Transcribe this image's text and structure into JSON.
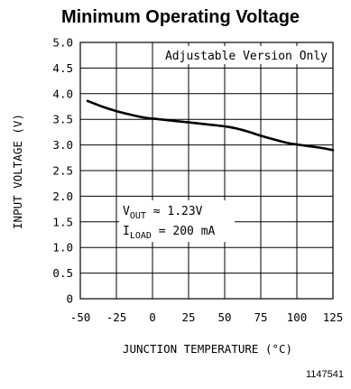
{
  "chart_data": {
    "type": "line",
    "title": "Minimum Operating Voltage",
    "xlabel": "JUNCTION TEMPERATURE (°C)",
    "ylabel": "INPUT VOLTAGE (V)",
    "xlim": [
      -50,
      125
    ],
    "ylim": [
      0,
      5.0
    ],
    "x_ticks": [
      "-50",
      "-25",
      "0",
      "25",
      "50",
      "75",
      "100",
      "125"
    ],
    "y_ticks": [
      "0",
      "0.5",
      "1.0",
      "1.5",
      "2.0",
      "2.5",
      "3.0",
      "3.5",
      "4.0",
      "4.5",
      "5.0"
    ],
    "grid": true,
    "series": [
      {
        "x": [
          -45,
          -35,
          -25,
          -15,
          -5,
          5,
          15,
          25,
          35,
          45,
          55,
          65,
          75,
          85,
          95,
          105,
          115,
          125
        ],
        "y": [
          3.86,
          3.75,
          3.66,
          3.59,
          3.53,
          3.5,
          3.47,
          3.44,
          3.41,
          3.38,
          3.34,
          3.27,
          3.18,
          3.1,
          3.03,
          2.99,
          2.95,
          2.9
        ]
      }
    ],
    "annotations": {
      "top_right": "Adjustable Version Only",
      "vout_prefix": "V",
      "vout_sub": "OUT",
      "vout_rest": " ≈ 1.23V",
      "iload_prefix": "I",
      "iload_sub": "LOAD",
      "iload_rest": " = 200 mA"
    },
    "figure_code": "1147541"
  }
}
